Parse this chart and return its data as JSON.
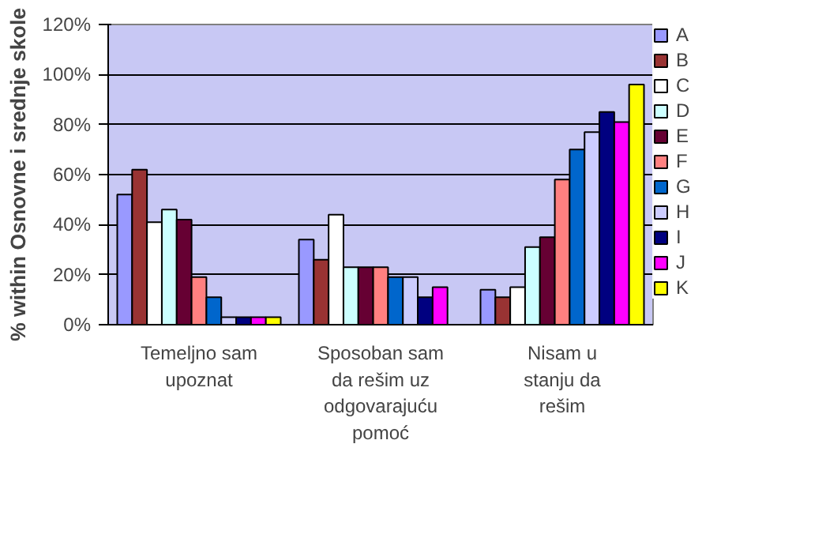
{
  "chart_data": {
    "type": "bar",
    "ylabel": "% within Osnovne i srednje skole",
    "categories": [
      "Temeljno sam upoznat",
      "Sposoban sam da rešim uz odgovarajuću pomoć",
      "Nisam u stanju da rešim"
    ],
    "series": [
      {
        "name": "A",
        "color": "#9999ff",
        "values": [
          52,
          34,
          14
        ]
      },
      {
        "name": "B",
        "color": "#993333",
        "values": [
          62,
          26,
          11
        ]
      },
      {
        "name": "C",
        "color": "#ffffff",
        "values": [
          41,
          44,
          15
        ]
      },
      {
        "name": "D",
        "color": "#ccffff",
        "values": [
          46,
          23,
          31
        ]
      },
      {
        "name": "E",
        "color": "#660033",
        "values": [
          42,
          23,
          35
        ]
      },
      {
        "name": "F",
        "color": "#ff8080",
        "values": [
          19,
          23,
          58
        ]
      },
      {
        "name": "G",
        "color": "#0066cc",
        "values": [
          11,
          19,
          70
        ]
      },
      {
        "name": "H",
        "color": "#ccccff",
        "values": [
          3,
          19,
          77
        ]
      },
      {
        "name": "I",
        "color": "#000080",
        "values": [
          3,
          11,
          85
        ]
      },
      {
        "name": "J",
        "color": "#ff00ff",
        "values": [
          3,
          15,
          81
        ]
      },
      {
        "name": "K",
        "color": "#ffff00",
        "values": [
          3,
          null,
          96
        ]
      }
    ],
    "ylim": [
      0,
      120
    ],
    "yticks": [
      {
        "value": 0,
        "label": "0%"
      },
      {
        "value": 20,
        "label": "20%"
      },
      {
        "value": 40,
        "label": "40%"
      },
      {
        "value": 60,
        "label": "60%"
      },
      {
        "value": 80,
        "label": "80%"
      },
      {
        "value": 100,
        "label": "100%"
      },
      {
        "value": 120,
        "label": "120%"
      }
    ],
    "grid": "y",
    "legend": "right"
  }
}
